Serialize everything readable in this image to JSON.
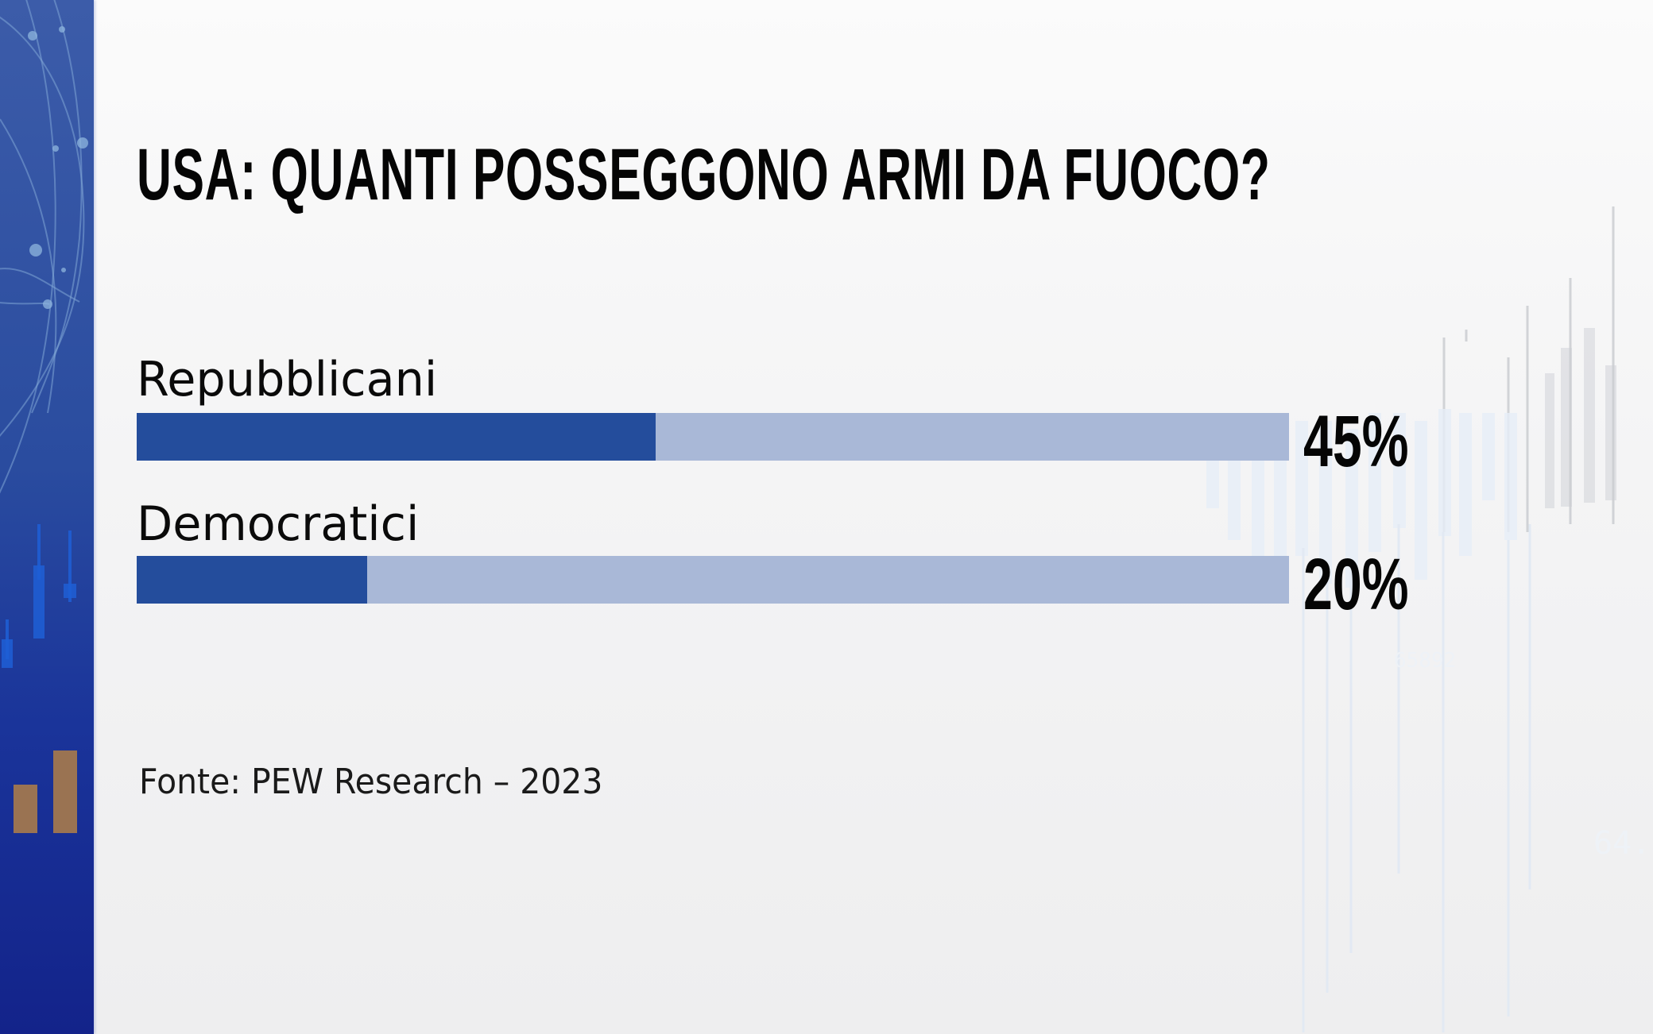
{
  "title": "USA: QUANTI POSSEGGONO ARMI DA FUOCO?",
  "rows": [
    {
      "label": "Repubblicani",
      "value": 45,
      "value_label": "45%"
    },
    {
      "label": "Democratici",
      "value": 20,
      "value_label": "20%"
    }
  ],
  "source": "Fonte: PEW Research – 2023",
  "colors": {
    "bar_fill": "#244d9c",
    "bar_track": "#a9b8d7",
    "side_panel_top": "#3c5ca9",
    "side_panel_bottom": "#13238a",
    "side_accent_bars": "#9a7352"
  },
  "chart_data": {
    "type": "bar",
    "orientation": "horizontal",
    "title": "USA: QUANTI POSSEGGONO ARMI DA FUOCO?",
    "categories": [
      "Repubblicani",
      "Democratici"
    ],
    "values": [
      45,
      20
    ],
    "value_labels": [
      "45%",
      "20%"
    ],
    "unit": "%",
    "xlim": [
      0,
      100
    ],
    "xlabel": "",
    "ylabel": "",
    "grid": false,
    "legend": null,
    "annotations": [
      "Fonte: PEW Research – 2023"
    ]
  }
}
